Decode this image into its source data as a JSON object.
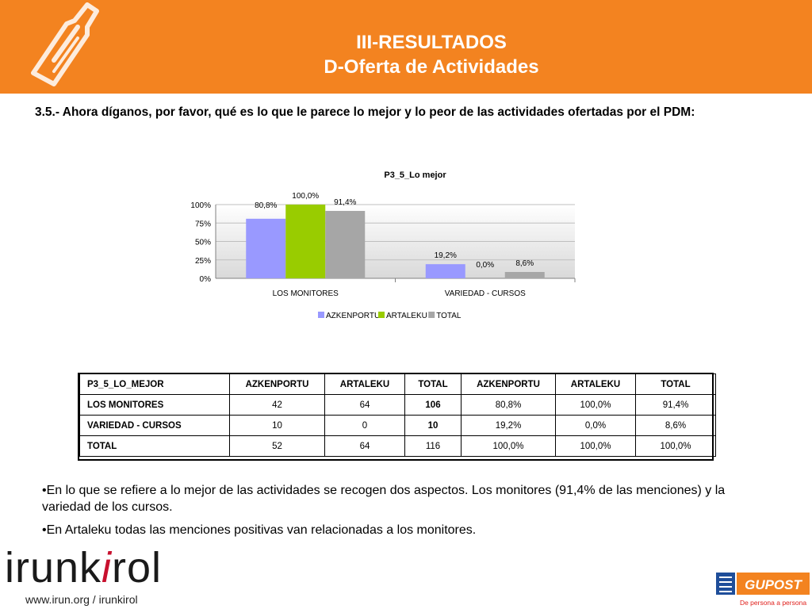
{
  "header": {
    "title_line1": "III-RESULTADOS",
    "title_line2": "D-Oferta de Actividades",
    "accent": "#f38320"
  },
  "question": "3.5.- Ahora díganos, por favor, qué es lo que le parece lo mejor y lo peor de las actividades ofertadas por el PDM:",
  "chart_data": {
    "type": "bar",
    "title": "P3_5_Lo mejor",
    "categories": [
      "LOS MONITORES",
      "VARIEDAD - CURSOS"
    ],
    "series": [
      {
        "name": "AZKENPORTU",
        "values": [
          80.8,
          19.2
        ],
        "labels": [
          "80,8%",
          "19,2%"
        ],
        "color": "#9999ff"
      },
      {
        "name": "ARTALEKU",
        "values": [
          100.0,
          0.0
        ],
        "labels": [
          "100,0%",
          "0,0%"
        ],
        "color": "#99cc00"
      },
      {
        "name": "TOTAL",
        "values": [
          91.4,
          8.6
        ],
        "labels": [
          "91,4%",
          "8,6%"
        ],
        "color": "#a6a6a6"
      }
    ],
    "ylim": [
      0,
      100
    ],
    "yticks": [
      0,
      25,
      50,
      75,
      100
    ],
    "ytick_labels": [
      "0%",
      "25%",
      "50%",
      "75%",
      "100%"
    ],
    "grid": true,
    "legend_position": "bottom"
  },
  "table": {
    "header": [
      "P3_5_LO_MEJOR",
      "AZKENPORTU",
      "ARTALEKU",
      "TOTAL",
      "AZKENPORTU",
      "ARTALEKU",
      "TOTAL"
    ],
    "rows": [
      [
        "LOS MONITORES",
        "42",
        "64",
        "106",
        "80,8%",
        "100,0%",
        "91,4%"
      ],
      [
        "VARIEDAD - CURSOS",
        "10",
        "0",
        "10",
        "19,2%",
        "0,0%",
        "8,6%"
      ],
      [
        "TOTAL",
        "52",
        "64",
        "116",
        "100,0%",
        "100,0%",
        "100,0%"
      ]
    ]
  },
  "bullets": [
    "•En lo que se refiere a lo mejor de las actividades se recogen dos aspectos. Los monitores (91,4% de las menciones) y la variedad de los cursos.",
    "•En Artaleku todas las menciones positivas van relacionadas a los monitores."
  ],
  "footer": {
    "logo_part1": "irunk",
    "logo_i": "i",
    "logo_part2": "rol",
    "url": "www.irun.org / irunkirol",
    "gupost_name": "GUPOST",
    "gupost_tagline": "De persona a persona"
  }
}
